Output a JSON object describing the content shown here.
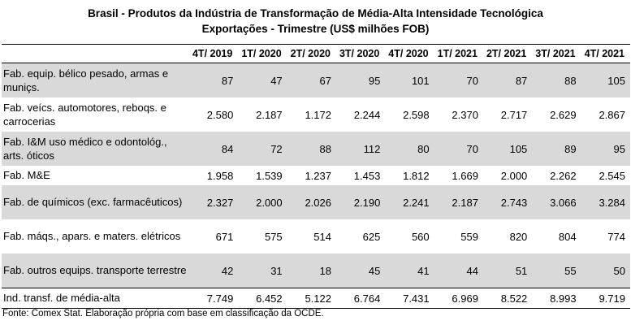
{
  "title_line1": "Brasil - Produtos da Indústria de Transformação de Média-Alta Intensidade Tecnológica",
  "title_line2": "Exportações - Trimestre (US$ milhões FOB)",
  "columns": [
    "4T/ 2019",
    "1T/ 2020",
    "2T/ 2020",
    "3T/ 2020",
    "4T/ 2020",
    "1T/ 2021",
    "2T/ 2021",
    "3T/ 2021",
    "4T/ 2021"
  ],
  "rows": [
    {
      "label": "Fab. equip. bélico pesado, armas e muniçs.",
      "values": [
        "87",
        "47",
        "67",
        "95",
        "101",
        "70",
        "87",
        "88",
        "105"
      ]
    },
    {
      "label": "Fab. veícs. automotores, reboqs. e carrocerias",
      "values": [
        "2.580",
        "2.187",
        "1.172",
        "2.244",
        "2.598",
        "2.370",
        "2.717",
        "2.629",
        "2.867"
      ]
    },
    {
      "label": "Fab. I&M uso médico e odontológ., arts. óticos",
      "values": [
        "84",
        "72",
        "88",
        "112",
        "80",
        "70",
        "105",
        "89",
        "95"
      ]
    },
    {
      "label": "Fab. M&E",
      "values": [
        "1.958",
        "1.539",
        "1.237",
        "1.453",
        "1.812",
        "1.669",
        "2.000",
        "2.262",
        "2.545"
      ]
    },
    {
      "label": "Fab. de químicos (exc. farmacêuticos)",
      "values": [
        "2.327",
        "2.000",
        "2.026",
        "2.190",
        "2.241",
        "2.187",
        "2.743",
        "3.066",
        "3.284"
      ]
    },
    {
      "label": "Fab. máqs., apars. e maters. elétricos",
      "values": [
        "671",
        "575",
        "514",
        "625",
        "560",
        "559",
        "820",
        "804",
        "774"
      ]
    },
    {
      "label": "Fab. outros equips. transporte terrestre",
      "values": [
        "42",
        "31",
        "18",
        "45",
        "41",
        "44",
        "51",
        "55",
        "50"
      ]
    },
    {
      "label": "Ind. transf. de média-alta",
      "values": [
        "7.749",
        "6.452",
        "5.122",
        "6.764",
        "7.431",
        "6.969",
        "8.522",
        "8.993",
        "9.719"
      ]
    }
  ],
  "footnote": "Fonte: Comex Stat. Elaboração própria com base em classificação da OCDE.",
  "colors": {
    "shaded_row": "#d9d9d9",
    "border": "#000000"
  }
}
